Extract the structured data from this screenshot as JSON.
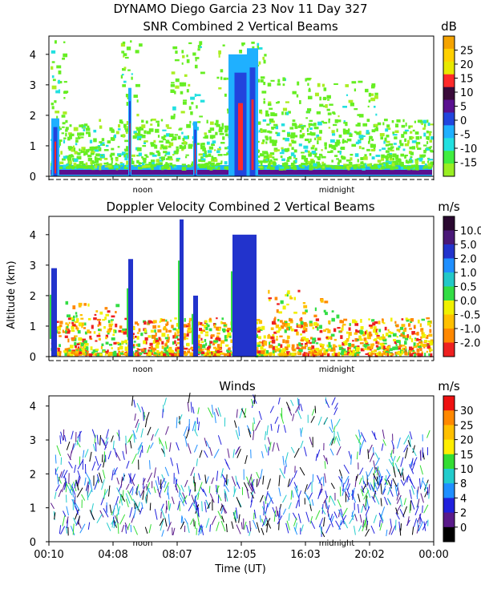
{
  "chart_data": {
    "header": {
      "title": "DYNAMO Diego Garcia  23 Nov 11 Day 327"
    },
    "panels": [
      {
        "id": "snr",
        "type": "heatmap",
        "title": "SNR Combined 2 Vertical Beams",
        "unit": "dB",
        "ylabel": "",
        "ylim": [
          0,
          4.6
        ],
        "yticks": [
          "0",
          "1",
          "2",
          "3",
          "4"
        ],
        "ytick_values": [
          0,
          1,
          2,
          3,
          4
        ],
        "x_markers": [
          "noon",
          "midnight"
        ],
        "colorbar": {
          "labels": [
            "25",
            "20",
            "15",
            "10",
            "5",
            "0",
            "-5",
            "-10",
            "-15"
          ],
          "colors": [
            "#f4a300",
            "#ffd000",
            "#e8e800",
            "#ff2a2a",
            "#3a0a3a",
            "#5a1090",
            "#2244dd",
            "#1fb0ff",
            "#22e0e0",
            "#40ee40",
            "#99ee22"
          ]
        }
      },
      {
        "id": "doppler",
        "type": "heatmap",
        "title": "Doppler Velocity Combined 2 Vertical Beams",
        "unit": "m/s",
        "ylabel": "Altitude (km)",
        "ylim": [
          0,
          4.6
        ],
        "yticks": [
          "0",
          "1",
          "2",
          "3",
          "4"
        ],
        "ytick_values": [
          0,
          1,
          2,
          3,
          4
        ],
        "x_markers": [
          "noon",
          "midnight"
        ],
        "colorbar": {
          "labels": [
            "10.0",
            "5.0",
            "2.0",
            "1.0",
            "0.5",
            "0.0",
            "-0.5",
            "-1.0",
            "-2.0"
          ],
          "colors": [
            "#2a0830",
            "#4a1878",
            "#2233cc",
            "#1f8fff",
            "#22c8c8",
            "#33dd44",
            "#f0f000",
            "#ffc000",
            "#ff8800",
            "#ee2020"
          ]
        }
      },
      {
        "id": "winds",
        "type": "scatter",
        "title": "Winds",
        "unit": "m/s",
        "ylabel": "",
        "ylim": [
          0,
          4.3
        ],
        "yticks": [
          "0",
          "1",
          "2",
          "3",
          "4"
        ],
        "ytick_values": [
          0,
          1,
          2,
          3,
          4
        ],
        "x_markers": [
          "noon",
          "midnight"
        ],
        "xlabel": "Time (UT)",
        "xticks": [
          "00:10",
          "04:08",
          "08:07",
          "12:05",
          "16:03",
          "20:02",
          "00:00"
        ],
        "colorbar": {
          "labels": [
            "30",
            "25",
            "20",
            "15",
            "10",
            "8",
            "4",
            "2",
            "0"
          ],
          "colors": [
            "#ee1111",
            "#ff8800",
            "#ffc000",
            "#ffee00",
            "#33dd33",
            "#22cccc",
            "#1f8fff",
            "#2020dd",
            "#5a1a8a",
            "#000000"
          ]
        }
      }
    ]
  }
}
